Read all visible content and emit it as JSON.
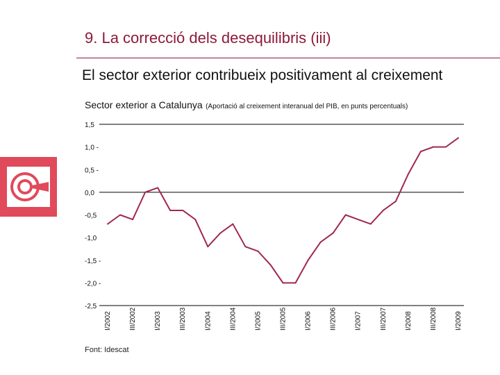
{
  "slide": {
    "title": "9. La correcció dels desequilibris (iii)",
    "subtitle": "El sector exterior contribueix positivament al creixement",
    "source": "Font: Idescat",
    "accent_color": "#8b1a3a",
    "logo_icon": "cidem-logo-icon",
    "logo_color": "#e04a5a"
  },
  "chart_data": {
    "type": "line",
    "title": "Sector exterior a Catalunya",
    "subtitle": "(Aportació al creixement interanual del PIB, en punts percentuals)",
    "xlabel": "",
    "ylabel": "",
    "ylim": [
      -2.5,
      1.5
    ],
    "yticks": [
      1.5,
      1.0,
      0.5,
      0.0,
      -0.5,
      -1.0,
      -1.5,
      -2.0,
      -2.5
    ],
    "ytick_labels": [
      "1,5",
      "1,0 -",
      "0,5 -",
      "0,0",
      "-0,5",
      "-1,0",
      "-1,5 -",
      "-2,0 -",
      "-2,5"
    ],
    "gridlines_at": [
      1.5,
      0.0,
      -2.5
    ],
    "xtick_labels": [
      "I/2002",
      "III/2002",
      "I/2003",
      "III/2003",
      "I/2004",
      "III/2004",
      "I/2005",
      "III/2005",
      "I/2006",
      "III/2006",
      "I/2007",
      "III/2007",
      "I/2008",
      "III/2008",
      "I/2009"
    ],
    "series": [
      {
        "name": "Sector exterior",
        "color": "#a0284e",
        "values": [
          -0.7,
          -0.5,
          -0.6,
          0.0,
          0.1,
          -0.4,
          -0.4,
          -0.6,
          -1.2,
          -0.9,
          -0.7,
          -1.2,
          -1.3,
          -1.6,
          -2.0,
          -2.0,
          -1.5,
          -1.1,
          -0.9,
          -0.5,
          -0.6,
          -0.7,
          -0.4,
          -0.2,
          0.4,
          0.9,
          1.0,
          1.0,
          1.2
        ]
      }
    ]
  }
}
